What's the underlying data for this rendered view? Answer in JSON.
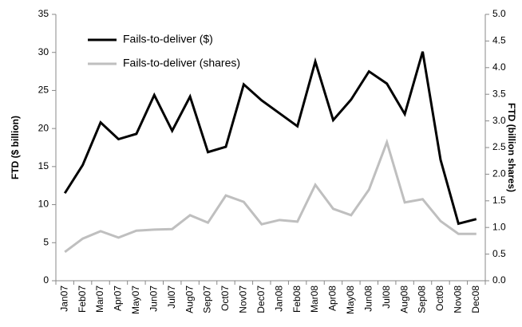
{
  "chart_data": {
    "type": "line",
    "y_label": "FTD ($ billion)",
    "y2_label": "FTD (billion shares)",
    "categories": [
      "Jan07",
      "Feb07",
      "Mar07",
      "Apr07",
      "May07",
      "Jun07",
      "Jul07",
      "Aug07",
      "Sep07",
      "Oct07",
      "Nov07",
      "Dec07",
      "Jan08",
      "Feb08",
      "Mar08",
      "Apr08",
      "May08",
      "Jun08",
      "Jul08",
      "Aug08",
      "Sep08",
      "Oct08",
      "Nov08",
      "Dec08"
    ],
    "series": [
      {
        "name": "Fails-to-deliver ($)",
        "color": "#000000",
        "axis": "y",
        "values": [
          11.5,
          15.2,
          20.8,
          18.6,
          19.3,
          24.4,
          19.7,
          24.2,
          16.9,
          17.6,
          25.8,
          23.7,
          22.0,
          20.3,
          28.8,
          21.1,
          23.8,
          27.5,
          25.9,
          21.9,
          30.1,
          15.9,
          7.5,
          8.1
        ]
      },
      {
        "name": "Fails-to-deliver (shares)",
        "color": "#bfbfbf",
        "axis": "y2",
        "values": [
          0.54,
          0.79,
          0.93,
          0.81,
          0.94,
          0.96,
          0.97,
          1.23,
          1.09,
          1.6,
          1.48,
          1.06,
          1.14,
          1.11,
          1.8,
          1.35,
          1.23,
          1.71,
          2.6,
          1.47,
          1.53,
          1.12,
          0.88,
          0.88
        ]
      }
    ],
    "ylim": [
      0,
      35
    ],
    "yticks": [
      0,
      5,
      10,
      15,
      20,
      25,
      30,
      35
    ],
    "y2lim": [
      0,
      5
    ],
    "y2ticks": [
      {
        "value": 0,
        "label": "0.0"
      },
      0.5,
      {
        "value": 1,
        "label": "1.0"
      },
      1.5,
      {
        "value": 2,
        "label": "2.0"
      },
      2.5,
      {
        "value": 3,
        "label": "3.0"
      },
      3.5,
      {
        "value": 4,
        "label": "4.0"
      },
      4.5,
      {
        "value": 5,
        "label": "5.0"
      }
    ],
    "grid": false,
    "legend": "upper left"
  }
}
